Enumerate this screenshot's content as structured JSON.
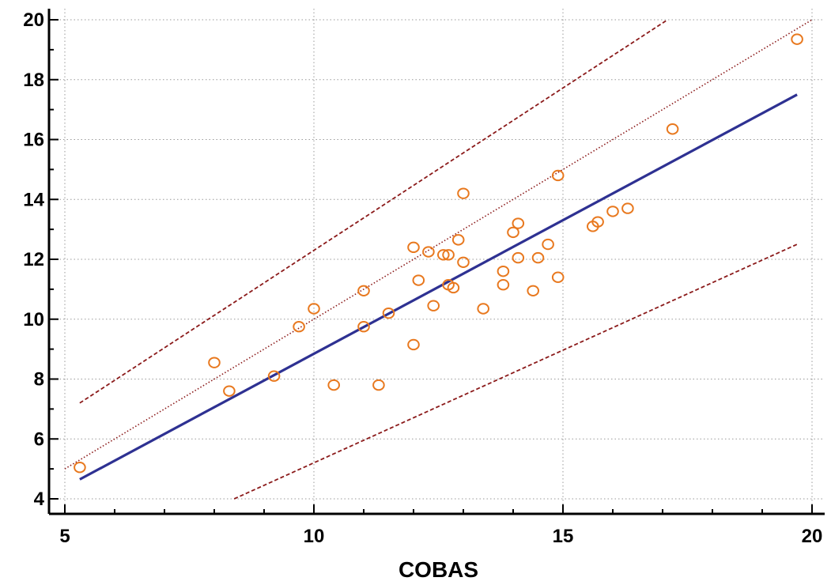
{
  "chart_data": {
    "type": "scatter",
    "title": "",
    "xlabel": "COBAS",
    "ylabel": "",
    "xlim": [
      5,
      20
    ],
    "ylim": [
      4,
      20
    ],
    "x_ticks": [
      5,
      10,
      15,
      20
    ],
    "y_ticks": [
      4,
      6,
      8,
      10,
      12,
      14,
      16,
      18,
      20
    ],
    "grid": true,
    "colors": {
      "points": "#e8781e",
      "regression": "#2e3192",
      "identity": "#8b1a1a",
      "bounds": "#8b1a1a"
    },
    "points": [
      {
        "x": 5.3,
        "y": 5.05
      },
      {
        "x": 8.0,
        "y": 8.55
      },
      {
        "x": 8.3,
        "y": 7.6
      },
      {
        "x": 9.2,
        "y": 8.1
      },
      {
        "x": 9.7,
        "y": 9.75
      },
      {
        "x": 10.0,
        "y": 10.35
      },
      {
        "x": 10.4,
        "y": 7.8
      },
      {
        "x": 11.0,
        "y": 10.95
      },
      {
        "x": 11.0,
        "y": 9.75
      },
      {
        "x": 11.3,
        "y": 7.8
      },
      {
        "x": 11.5,
        "y": 10.2
      },
      {
        "x": 12.0,
        "y": 12.4
      },
      {
        "x": 12.0,
        "y": 9.15
      },
      {
        "x": 12.1,
        "y": 11.3
      },
      {
        "x": 12.3,
        "y": 12.25
      },
      {
        "x": 12.4,
        "y": 10.45
      },
      {
        "x": 12.6,
        "y": 12.15
      },
      {
        "x": 12.7,
        "y": 12.15
      },
      {
        "x": 12.7,
        "y": 11.15
      },
      {
        "x": 12.8,
        "y": 11.05
      },
      {
        "x": 12.9,
        "y": 12.65
      },
      {
        "x": 13.0,
        "y": 11.9
      },
      {
        "x": 13.0,
        "y": 14.2
      },
      {
        "x": 13.4,
        "y": 10.35
      },
      {
        "x": 13.8,
        "y": 11.6
      },
      {
        "x": 13.8,
        "y": 11.15
      },
      {
        "x": 14.0,
        "y": 12.9
      },
      {
        "x": 14.1,
        "y": 13.2
      },
      {
        "x": 14.1,
        "y": 12.05
      },
      {
        "x": 14.4,
        "y": 10.95
      },
      {
        "x": 14.5,
        "y": 12.05
      },
      {
        "x": 14.7,
        "y": 12.5
      },
      {
        "x": 14.9,
        "y": 14.8
      },
      {
        "x": 14.9,
        "y": 11.4
      },
      {
        "x": 15.6,
        "y": 13.1
      },
      {
        "x": 15.7,
        "y": 13.25
      },
      {
        "x": 16.0,
        "y": 13.6
      },
      {
        "x": 16.3,
        "y": 13.7
      },
      {
        "x": 17.2,
        "y": 16.35
      },
      {
        "x": 19.7,
        "y": 19.35
      }
    ],
    "regression_line": [
      [
        5.3,
        4.65
      ],
      [
        19.7,
        17.5
      ]
    ],
    "identity_line": [
      [
        5.0,
        5.0
      ],
      [
        20.0,
        20.0
      ]
    ],
    "upper_bound": [
      [
        5.3,
        7.2
      ],
      [
        17.1,
        20.0
      ]
    ],
    "lower_bound": [
      [
        8.4,
        4.0
      ],
      [
        19.7,
        12.5
      ]
    ]
  }
}
